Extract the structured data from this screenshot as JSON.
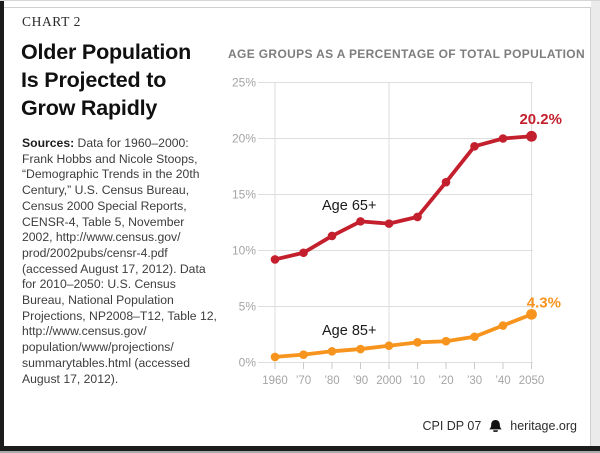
{
  "page": {
    "kicker": "CHART 2",
    "title_lines": [
      "Older Population",
      "Is Projected to",
      "Grow Rapidly"
    ],
    "sources_label": "Sources:",
    "sources_lines": [
      " Data for 1960–2000:",
      "Frank Hobbs and Nicole Stoops,",
      "“Demographic Trends in the 20th",
      "Century,” U.S. Census Bureau,",
      "Census 2000 Special Reports,",
      "CENSR-4, Table 5, November",
      "2002, http://www.census.gov/",
      "prod/2002pubs/censr-4.pdf",
      "(accessed August 17, 2012). Data",
      "for 2010–2050: U.S. Census",
      "Bureau, National Population",
      "Projections, NP2008–T12, Table 12,",
      "http://www.census.gov/",
      "population/www/projections/",
      "summarytables.html (accessed",
      "August 17, 2012)."
    ],
    "footer": {
      "doc_id": "CPI DP 07",
      "site": "heritage.org",
      "logo_icon": "liberty-bell-icon"
    }
  },
  "chart_data": {
    "type": "line",
    "title": "AGE GROUPS AS A PERCENTAGE OF TOTAL POPULATION",
    "xlabel": "",
    "ylabel": "",
    "categories": [
      1960,
      1970,
      1980,
      1990,
      2000,
      2010,
      2020,
      2030,
      2040,
      2050
    ],
    "x_tick_labels": [
      "1960",
      "’70",
      "’80",
      "’90",
      "2000",
      "’10",
      "’20",
      "’30",
      "’40",
      "2050"
    ],
    "y_tick_labels": [
      "0%",
      "5%",
      "10%",
      "15%",
      "20%",
      "25%"
    ],
    "ylim": [
      0,
      25
    ],
    "y_step": 5,
    "grid": {
      "horizontal": true,
      "vertical_at_categories": [
        1960,
        2000,
        2050
      ]
    },
    "legend_position": "inline-labels",
    "series": [
      {
        "name": "Age 65+",
        "color": "#C41F2D",
        "values": [
          9.2,
          9.8,
          11.3,
          12.6,
          12.4,
          13.0,
          16.1,
          19.3,
          20.0,
          20.2
        ],
        "end_label": "20.2%"
      },
      {
        "name": "Age 85+",
        "color": "#F7941E",
        "values": [
          0.5,
          0.7,
          1.0,
          1.2,
          1.5,
          1.8,
          1.9,
          2.3,
          3.3,
          4.3
        ],
        "end_label": "4.3%"
      }
    ],
    "colors": {
      "grid_line": "#DEDEDE",
      "tick_mark": "#C9C9C9",
      "axis_label": "#A5A5A5",
      "series_label_text": "#1A1A1A"
    }
  }
}
